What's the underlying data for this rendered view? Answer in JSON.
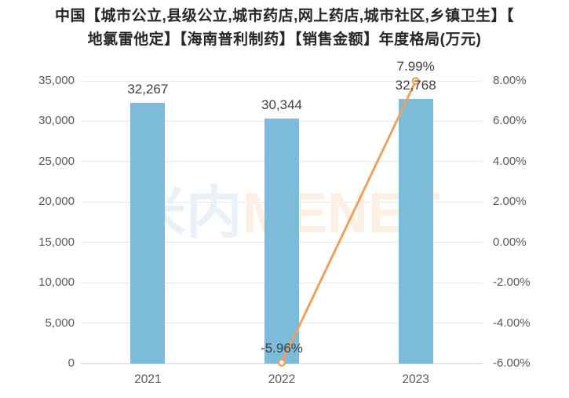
{
  "title": {
    "line1": "中国【城市公立,县级公立,城市药店,网上药店,城市社区,乡镇卫生】【",
    "line2": "地氯雷他定】【海南普利制药】【销售金额】年度格局(万元)"
  },
  "watermark": {
    "cn": "米内",
    "en": "MENET"
  },
  "colors": {
    "bar": "#7cbbd9",
    "line": "#eca15f",
    "marker_fill": "#fdf4eb",
    "grid": "#e9e9e9",
    "axis_line": "#cfcfcf",
    "tick_label": "#595959",
    "data_label": "#3f3f3f",
    "title": "#262626",
    "watermark_cn": "#e9f1f7",
    "watermark_en": "#fcefe4"
  },
  "chart_data": {
    "type": "bar",
    "title": "中国【城市公立,县级公立,城市药店,网上药店,城市社区,乡镇卫生】【地氯雷他定】【海南普利制药】【销售金额】年度格局(万元)",
    "categories": [
      "2021",
      "2022",
      "2023"
    ],
    "series": [
      {
        "name": "sales_amount",
        "type": "bar",
        "axis": "left",
        "values": [
          32267,
          30344,
          32768
        ],
        "labels": [
          "32,267",
          "30,344",
          "32,768"
        ]
      },
      {
        "name": "growth_rate",
        "type": "line",
        "axis": "right",
        "values": [
          null,
          -5.96,
          7.99
        ],
        "labels": [
          "",
          "-5.96%",
          "7.99%"
        ]
      }
    ],
    "left_axis": {
      "min": 0,
      "max": 35000,
      "step": 5000,
      "tick_labels": [
        "0",
        "5,000",
        "10,000",
        "15,000",
        "20,000",
        "25,000",
        "30,000",
        "35,000"
      ]
    },
    "right_axis": {
      "min": -6,
      "max": 8,
      "step": 2,
      "tick_labels": [
        "-6.00%",
        "-4.00%",
        "-2.00%",
        "0.00%",
        "2.00%",
        "4.00%",
        "6.00%",
        "8.00%"
      ]
    },
    "grid": true,
    "legend": "none"
  }
}
